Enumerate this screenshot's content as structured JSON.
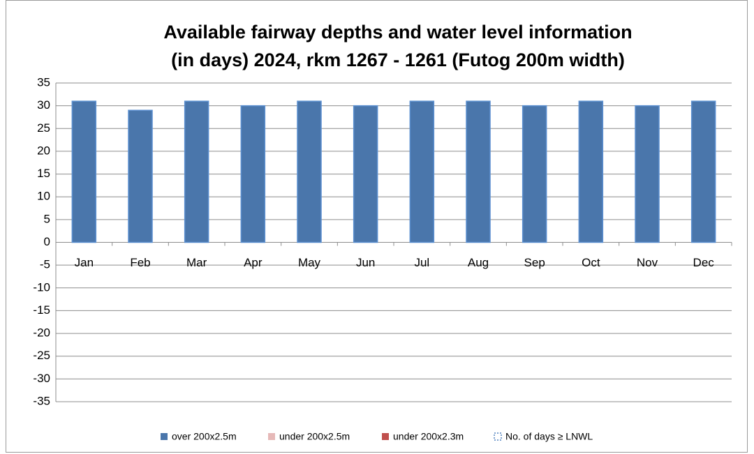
{
  "chart_data": {
    "type": "bar",
    "title": [
      "Available fairway depths and water level information",
      "(in days) 2024, rkm 1267 - 1261 (Futog 200m width)"
    ],
    "categories": [
      "Jan",
      "Feb",
      "Mar",
      "Apr",
      "May",
      "Jun",
      "Jul",
      "Aug",
      "Sep",
      "Oct",
      "Nov",
      "Dec"
    ],
    "series": [
      {
        "name": "over 200x2.5m",
        "color": "#4a76ab",
        "values": [
          31,
          29,
          31,
          30,
          31,
          30,
          31,
          31,
          30,
          31,
          30,
          31
        ]
      },
      {
        "name": "under 200x2.5m",
        "color": "#e6b9b8",
        "values": [
          0,
          0,
          0,
          0,
          0,
          0,
          0,
          0,
          0,
          0,
          0,
          0
        ]
      },
      {
        "name": "under 200x2.3m",
        "color": "#c0504d",
        "values": [
          0,
          0,
          0,
          0,
          0,
          0,
          0,
          0,
          0,
          0,
          0,
          0
        ]
      },
      {
        "name": "No. of days ≥ LNWL",
        "color": "#4f81bd",
        "values": [
          0,
          0,
          0,
          0,
          0,
          0,
          0,
          0,
          0,
          0,
          0,
          0
        ]
      }
    ],
    "ylim": [
      -35,
      35
    ],
    "yticks": [
      -35,
      -30,
      -25,
      -20,
      -15,
      -10,
      -5,
      0,
      5,
      10,
      15,
      20,
      25,
      30,
      35
    ],
    "grid": true
  }
}
